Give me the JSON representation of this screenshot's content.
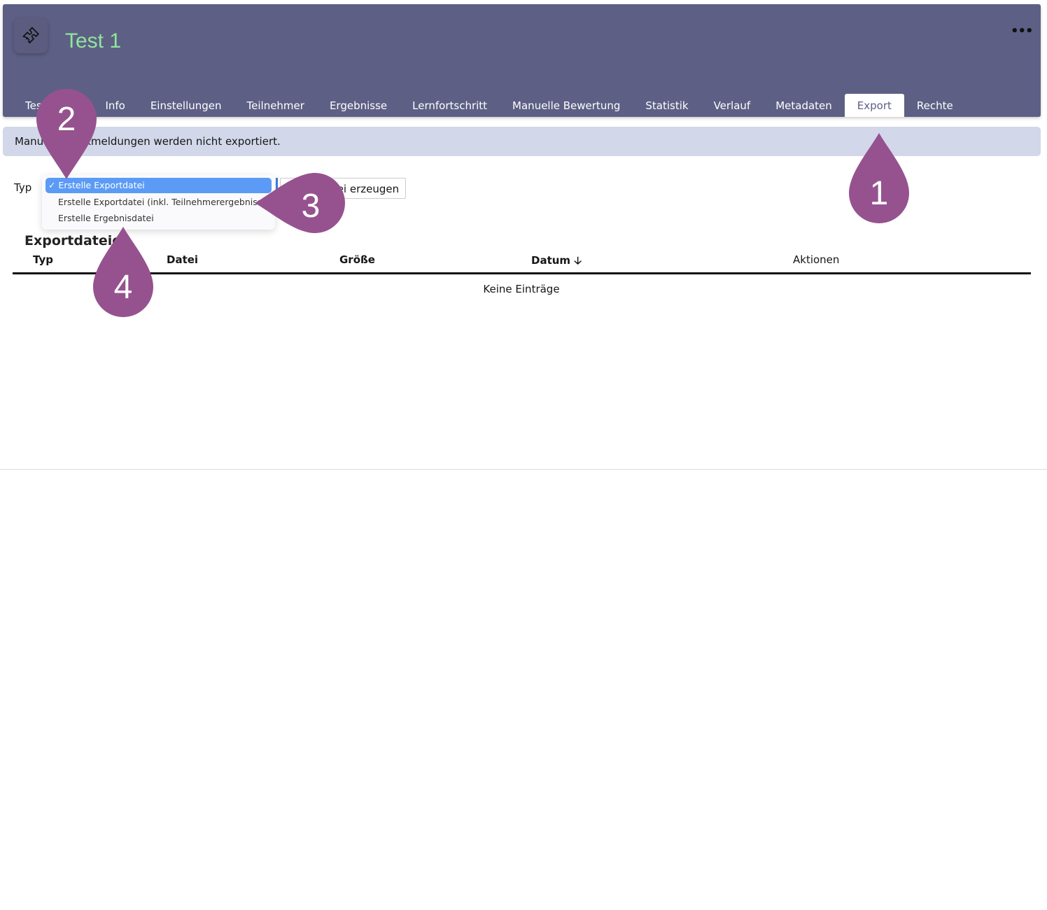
{
  "header": {
    "title": "Test 1",
    "icon": "puzzle-icon",
    "more_icon": "ellipsis-icon",
    "more": "•••",
    "title_color": "#8fe69a",
    "bg_color": "#5e5f85"
  },
  "tabs": [
    {
      "label": "Testfragen"
    },
    {
      "label": "Info"
    },
    {
      "label": "Einstellungen"
    },
    {
      "label": "Teilnehmer"
    },
    {
      "label": "Ergebnisse"
    },
    {
      "label": "Lernfortschritt"
    },
    {
      "label": "Manuelle Bewertung"
    },
    {
      "label": "Statistik"
    },
    {
      "label": "Verlauf"
    },
    {
      "label": "Metadaten"
    },
    {
      "label": "Export",
      "active": true
    },
    {
      "label": "Rechte"
    }
  ],
  "info_message": "Manuelle Rückmeldungen werden nicht exportiert.",
  "export": {
    "type_label": "Typ",
    "options": [
      "✓ Erstelle Exportdatei",
      "Erstelle Exportdatei (inkl. Teilnehmerergebnisse)",
      "Erstelle Ergebnisdatei"
    ],
    "button": "Exportdatei erzeugen"
  },
  "table": {
    "title": "Exportdateien",
    "columns": [
      "Typ",
      "Datei",
      "Größe",
      "Datum",
      "Aktionen"
    ],
    "sort_icon": "arrow-down-icon",
    "empty": "Keine Einträge"
  },
  "markers": [
    "1",
    "2",
    "3",
    "4"
  ],
  "marker_color": "#96528f"
}
